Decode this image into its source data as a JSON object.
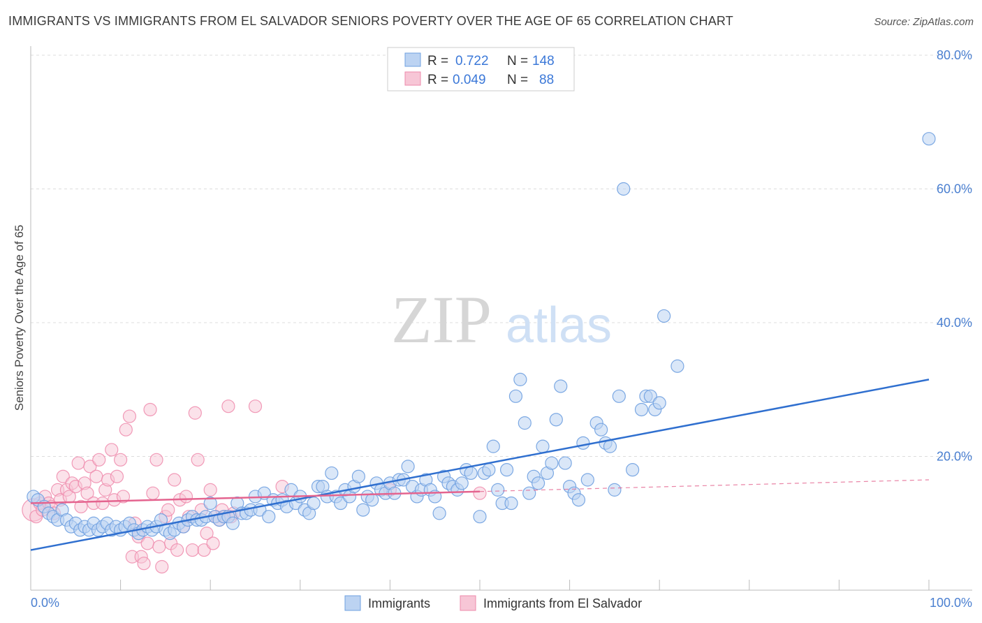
{
  "title": "IMMIGRANTS VS IMMIGRANTS FROM EL SALVADOR SENIORS POVERTY OVER THE AGE OF 65 CORRELATION CHART",
  "source": "Source: ZipAtlas.com",
  "watermark": {
    "zip": "ZIP",
    "atlas": "atlas"
  },
  "colors": {
    "blue": "#6fa0e0",
    "blue_fill": "#bcd3f2",
    "blue_line": "#2f6fcf",
    "pink": "#ee8aab",
    "pink_fill": "#f7c6d6",
    "pink_line": "#e4648f",
    "axis_text": "#4a7fd0"
  },
  "legend": {
    "rows": [
      {
        "r_label": "R =",
        "r_value": "0.722",
        "n_label": "N =",
        "n_value": "148"
      },
      {
        "r_label": "R =",
        "r_value": "0.049",
        "n_label": "N =",
        "n_value": "88"
      }
    ]
  },
  "bottom_legend": [
    "Immigrants",
    "Immigrants from El Salvador"
  ],
  "chart_data": {
    "type": "scatter",
    "ylabel": "Seniors Poverty Over the Age of 65",
    "xlim": [
      0,
      100
    ],
    "ylim": [
      0,
      80
    ],
    "x_tick_labels": [
      "0.0%",
      "100.0%"
    ],
    "y_ticks": [
      20,
      40,
      60,
      80
    ],
    "y_tick_labels": [
      "20.0%",
      "40.0%",
      "60.0%",
      "80.0%"
    ],
    "grid": true,
    "series": [
      {
        "name": "Immigrants",
        "trend": {
          "x": [
            0,
            100
          ],
          "y": [
            6.0,
            31.5
          ]
        },
        "points": [
          [
            0.3,
            14
          ],
          [
            0.8,
            13.5
          ],
          [
            1.5,
            12.5
          ],
          [
            2,
            11.5
          ],
          [
            2.5,
            11
          ],
          [
            3,
            10.5
          ],
          [
            3.5,
            12
          ],
          [
            4,
            10.5
          ],
          [
            4.5,
            9.5
          ],
          [
            5,
            10
          ],
          [
            5.5,
            9
          ],
          [
            6,
            9.5
          ],
          [
            6.5,
            9
          ],
          [
            7,
            10
          ],
          [
            7.5,
            9
          ],
          [
            8,
            9.5
          ],
          [
            8.5,
            10
          ],
          [
            9,
            9
          ],
          [
            9.5,
            9.5
          ],
          [
            10,
            9
          ],
          [
            10.5,
            9.5
          ],
          [
            11,
            10
          ],
          [
            11.5,
            9
          ],
          [
            12,
            8.5
          ],
          [
            12.5,
            9
          ],
          [
            13,
            9.5
          ],
          [
            13.5,
            9
          ],
          [
            14,
            9.5
          ],
          [
            14.5,
            10.5
          ],
          [
            15,
            9
          ],
          [
            15.5,
            8.5
          ],
          [
            16,
            9
          ],
          [
            16.5,
            10
          ],
          [
            17,
            9.5
          ],
          [
            17.5,
            10.5
          ],
          [
            18,
            11
          ],
          [
            18.5,
            10.5
          ],
          [
            19,
            10.5
          ],
          [
            19.5,
            11
          ],
          [
            20,
            13
          ],
          [
            20.5,
            11
          ],
          [
            21,
            10.5
          ],
          [
            21.5,
            11
          ],
          [
            22,
            11
          ],
          [
            22.5,
            10
          ],
          [
            23,
            13
          ],
          [
            23.5,
            11.5
          ],
          [
            24,
            11.5
          ],
          [
            24.5,
            12
          ],
          [
            25,
            14
          ],
          [
            25.5,
            12
          ],
          [
            26,
            14.5
          ],
          [
            26.5,
            11
          ],
          [
            27,
            13.5
          ],
          [
            27.5,
            13
          ],
          [
            28,
            13.5
          ],
          [
            28.5,
            12.5
          ],
          [
            29,
            15
          ],
          [
            29.5,
            13
          ],
          [
            30,
            14
          ],
          [
            30.5,
            12
          ],
          [
            31,
            11.5
          ],
          [
            31.5,
            13
          ],
          [
            32,
            15.5
          ],
          [
            32.5,
            15.5
          ],
          [
            33,
            14
          ],
          [
            33.5,
            17.5
          ],
          [
            34,
            14
          ],
          [
            34.5,
            13
          ],
          [
            35,
            15
          ],
          [
            35.5,
            14
          ],
          [
            36,
            15.5
          ],
          [
            36.5,
            17
          ],
          [
            37,
            12
          ],
          [
            37.5,
            14
          ],
          [
            38,
            13.5
          ],
          [
            38.5,
            16
          ],
          [
            39,
            15
          ],
          [
            39.5,
            14.5
          ],
          [
            40,
            16
          ],
          [
            40.5,
            14.5
          ],
          [
            41,
            16.5
          ],
          [
            41.5,
            16.5
          ],
          [
            42,
            18.5
          ],
          [
            42.5,
            15.5
          ],
          [
            43,
            14
          ],
          [
            43.5,
            15
          ],
          [
            44,
            16.5
          ],
          [
            44.5,
            15
          ],
          [
            45,
            14
          ],
          [
            45.5,
            11.5
          ],
          [
            46,
            17
          ],
          [
            46.5,
            16
          ],
          [
            47,
            15.5
          ],
          [
            47.5,
            15
          ],
          [
            48,
            16
          ],
          [
            48.5,
            18
          ],
          [
            49,
            17.5
          ],
          [
            50,
            11
          ],
          [
            50.5,
            17.5
          ],
          [
            51,
            18
          ],
          [
            51.5,
            21.5
          ],
          [
            52,
            15
          ],
          [
            52.5,
            13
          ],
          [
            53,
            18
          ],
          [
            53.5,
            13
          ],
          [
            54,
            29
          ],
          [
            54.5,
            31.5
          ],
          [
            55,
            25
          ],
          [
            55.5,
            14.5
          ],
          [
            56,
            17
          ],
          [
            56.5,
            16
          ],
          [
            57,
            21.5
          ],
          [
            57.5,
            17.5
          ],
          [
            58,
            19
          ],
          [
            58.5,
            25.5
          ],
          [
            59,
            30.5
          ],
          [
            59.5,
            19
          ],
          [
            60,
            15.5
          ],
          [
            60.5,
            14.5
          ],
          [
            61,
            13.5
          ],
          [
            61.5,
            22
          ],
          [
            62,
            16.5
          ],
          [
            63,
            25
          ],
          [
            63.5,
            24
          ],
          [
            64,
            22
          ],
          [
            64.5,
            21.5
          ],
          [
            65,
            15
          ],
          [
            65.5,
            29
          ],
          [
            66,
            60
          ],
          [
            67,
            18
          ],
          [
            68,
            27
          ],
          [
            68.5,
            29
          ],
          [
            69,
            29
          ],
          [
            69.5,
            27
          ],
          [
            70,
            28
          ],
          [
            70.5,
            41
          ],
          [
            72,
            33.5
          ],
          [
            100,
            67.5
          ]
        ]
      },
      {
        "name": "Immigrants from El Salvador",
        "trend": {
          "x": [
            0,
            100
          ],
          "y": [
            13.0,
            16.5
          ]
        },
        "trend_solid_until": 50,
        "points": [
          [
            0.3,
            12
          ],
          [
            0.6,
            11
          ],
          [
            1,
            13
          ],
          [
            1.3,
            12
          ],
          [
            1.6,
            14
          ],
          [
            2,
            13
          ],
          [
            2.3,
            12.5
          ],
          [
            2.6,
            11.5
          ],
          [
            3,
            15
          ],
          [
            3.3,
            13.5
          ],
          [
            3.6,
            17
          ],
          [
            4,
            15
          ],
          [
            4.3,
            14
          ],
          [
            4.6,
            16
          ],
          [
            5,
            15.5
          ],
          [
            5.3,
            19
          ],
          [
            5.6,
            12.5
          ],
          [
            6,
            16
          ],
          [
            6.3,
            14.5
          ],
          [
            6.6,
            18.5
          ],
          [
            7,
            13
          ],
          [
            7.3,
            17
          ],
          [
            7.6,
            19.5
          ],
          [
            8,
            13
          ],
          [
            8.3,
            15
          ],
          [
            8.6,
            16.5
          ],
          [
            9,
            21
          ],
          [
            9.3,
            13.5
          ],
          [
            9.6,
            17
          ],
          [
            10,
            19.5
          ],
          [
            10.3,
            14
          ],
          [
            10.6,
            24
          ],
          [
            11,
            26
          ],
          [
            11.3,
            5
          ],
          [
            11.6,
            10
          ],
          [
            12,
            8
          ],
          [
            12.3,
            5
          ],
          [
            12.6,
            4
          ],
          [
            13,
            7
          ],
          [
            13.3,
            27
          ],
          [
            13.6,
            14.5
          ],
          [
            14,
            19.5
          ],
          [
            14.3,
            6.5
          ],
          [
            14.6,
            3.5
          ],
          [
            15,
            11
          ],
          [
            15.3,
            12
          ],
          [
            15.6,
            7
          ],
          [
            16,
            16.5
          ],
          [
            16.3,
            6
          ],
          [
            16.6,
            13.5
          ],
          [
            17,
            9.5
          ],
          [
            17.3,
            14
          ],
          [
            17.6,
            11
          ],
          [
            18,
            6
          ],
          [
            18.3,
            26.5
          ],
          [
            18.6,
            19.5
          ],
          [
            19,
            12
          ],
          [
            19.3,
            6
          ],
          [
            19.6,
            8.5
          ],
          [
            20,
            15
          ],
          [
            20.3,
            7
          ],
          [
            20.6,
            11
          ],
          [
            21,
            10.5
          ],
          [
            21.3,
            12
          ],
          [
            21.6,
            11
          ],
          [
            22,
            27.5
          ],
          [
            22.3,
            11
          ],
          [
            22.6,
            11.5
          ],
          [
            25,
            27.5
          ],
          [
            28,
            15.5
          ],
          [
            40,
            15
          ],
          [
            50,
            14.5
          ]
        ]
      }
    ]
  }
}
